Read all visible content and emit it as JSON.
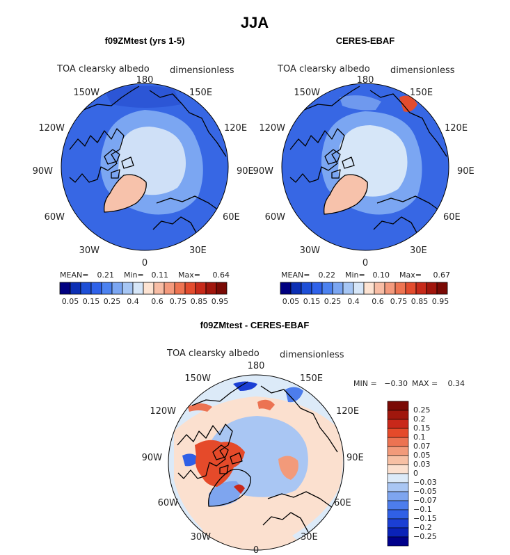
{
  "figure_title": "JJA",
  "colors": {
    "abs_scale": [
      "#000080",
      "#0c2fb4",
      "#1e4fd7",
      "#2f62ea",
      "#4c82f0",
      "#7ba6f2",
      "#a6c6f4",
      "#d6e6f8",
      "#fde3d2",
      "#f8bda5",
      "#f49a7d",
      "#ee7452",
      "#e34c2e",
      "#c72a1a",
      "#a1160d",
      "#7a0a05"
    ],
    "diff_scale": [
      "#00008b",
      "#0a22b8",
      "#1b3fd4",
      "#3060e6",
      "#4d7dec",
      "#7ea5ef",
      "#a9c6f3",
      "#dceaf8",
      "#fbe0cf",
      "#f7c0a4",
      "#f29a7a",
      "#ec7352",
      "#e54a2a",
      "#c9281a",
      "#a0170d",
      "#7a0a05"
    ]
  },
  "chart_data": [
    {
      "type": "heatmap",
      "title": "f09ZMtest (yrs 1-5)",
      "variable": "TOA clearsky albedo",
      "units": "dimensionless",
      "projection": "north polar stereographic",
      "longitude_labels": [
        "180",
        "150E",
        "120E",
        "90E",
        "60E",
        "30E",
        "0",
        "30W",
        "60W",
        "90W",
        "120W",
        "150W"
      ],
      "stats": {
        "mean_label": "MEAN=",
        "mean": "0.21",
        "min_label": "Min=",
        "min": "0.11",
        "max_label": "Max=",
        "max": "0.64"
      },
      "colorbar_ticks": [
        "0.05",
        "0.15",
        "0.25",
        "0.4",
        "0.6",
        "0.75",
        "0.85",
        "0.95"
      ],
      "field": {
        "ocean": 0.12,
        "central_arctic": 0.4,
        "arctic_ring": 0.3,
        "greenland": 0.6
      }
    },
    {
      "type": "heatmap",
      "title": "CERES-EBAF",
      "variable": "TOA clearsky albedo",
      "units": "dimensionless",
      "projection": "north polar stereographic",
      "longitude_labels": [
        "180",
        "150E",
        "120E",
        "90E",
        "60E",
        "30E",
        "0",
        "30W",
        "60W",
        "90W",
        "120W",
        "150W"
      ],
      "stats": {
        "mean_label": "MEAN=",
        "mean": "0.22",
        "min_label": "Min=",
        "min": "0.10",
        "max_label": "Max=",
        "max": "0.67"
      },
      "colorbar_ticks": [
        "0.05",
        "0.15",
        "0.25",
        "0.4",
        "0.6",
        "0.75",
        "0.85",
        "0.95"
      ],
      "field": {
        "ocean": 0.12,
        "central_arctic": 0.42,
        "arctic_ring": 0.3,
        "greenland": 0.65
      }
    },
    {
      "type": "heatmap",
      "title": "f09ZMtest - CERES-EBAF",
      "variable": "TOA clearsky albedo",
      "units": "dimensionless",
      "projection": "north polar stereographic",
      "longitude_labels": [
        "180",
        "150E",
        "120E",
        "90E",
        "60E",
        "30E",
        "0",
        "30W",
        "60W",
        "90W",
        "120W",
        "150W"
      ],
      "stats": {
        "min_label": "MIN =",
        "min": "−0.30",
        "max_label": "MAX =",
        "max": "0.34"
      },
      "colorbar_ticks": [
        "0.25",
        "0.2",
        "0.15",
        "0.1",
        "0.07",
        "0.05",
        "0.03",
        "0",
        "−0.03",
        "−0.05",
        "−0.07",
        "−0.1",
        "−0.15",
        "−0.2",
        "−0.25"
      ],
      "field": {
        "background": -0.01,
        "ice_edge": 0.03,
        "canadian_archipelago": 0.2,
        "east_siberian_sea": -0.2,
        "greenland": -0.05
      }
    }
  ]
}
